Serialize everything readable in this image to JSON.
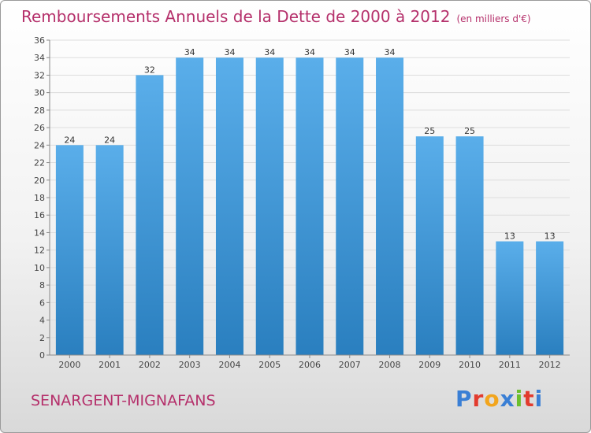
{
  "title": "Remboursements Annuels de la Dette de 2000 à 2012",
  "unit": "(en milliers d'€)",
  "city": "SENARGENT-MIGNAFANS",
  "logo": {
    "letters": [
      "P",
      "r",
      "o",
      "x",
      "i",
      "t",
      "i"
    ],
    "colors": [
      "#3a7fd5",
      "#e23b2e",
      "#f2a51d",
      "#3a7fd5",
      "#6bbf2c",
      "#e23b2e",
      "#3a7fd5"
    ]
  },
  "colors": {
    "bar_light": "#5aaeea",
    "bar_dark": "#2a7fbf",
    "title": "#b5306b",
    "grid": "#dddddd"
  },
  "chart_data": {
    "type": "bar",
    "title": "Remboursements Annuels de la Dette de 2000 à 2012",
    "xlabel": "",
    "ylabel": "",
    "categories": [
      "2000",
      "2001",
      "2002",
      "2003",
      "2004",
      "2005",
      "2006",
      "2007",
      "2008",
      "2009",
      "2010",
      "2011",
      "2012"
    ],
    "values": [
      24,
      24,
      32,
      34,
      34,
      34,
      34,
      34,
      34,
      25,
      25,
      13,
      13
    ],
    "ylim": [
      0,
      36
    ],
    "yticks": [
      0,
      2,
      4,
      6,
      8,
      10,
      12,
      14,
      16,
      18,
      20,
      22,
      24,
      26,
      28,
      30,
      32,
      34,
      36
    ],
    "grid": true,
    "legend": "none"
  }
}
